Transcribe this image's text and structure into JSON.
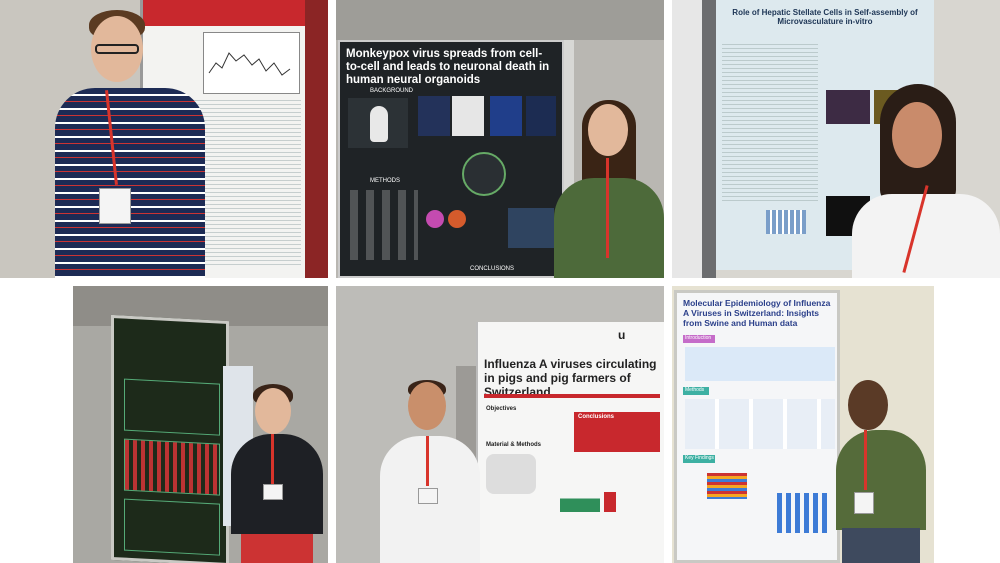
{
  "posters": {
    "p1": {
      "title": ""
    },
    "p2": {
      "title": "Monkeypox virus spreads from cell-to-cell and leads to neuronal death in human neural organoids",
      "sections": [
        "BACKGROUND",
        "METHODS",
        "CONCLUSIONS"
      ]
    },
    "p3": {
      "title": "Role of Hepatic Stellate Cells in Self-assembly of Microvasculature in-vitro"
    },
    "p4": {
      "title": ""
    },
    "p5": {
      "logo": "u",
      "title": "Influenza A viruses circulating in pigs and pig farmers of Switzerland",
      "sections": [
        "Objectives",
        "Conclusions",
        "Material & Methods"
      ]
    },
    "p6": {
      "title": "Molecular Epidemiology of Influenza A Viruses in Switzerland: Insights from Swine and Human data",
      "sections": [
        "Introduction",
        "Methods",
        "Key Findings"
      ]
    }
  },
  "colors": {
    "poster_red_header": "#c8282d",
    "poster_dark": "#1f2326",
    "poster_green_dark": "#1d2a1a",
    "lanyard": "#d8342b",
    "poster_pale_blue": "#dde9ee",
    "poster_green_accent": "#2f8f5a"
  }
}
